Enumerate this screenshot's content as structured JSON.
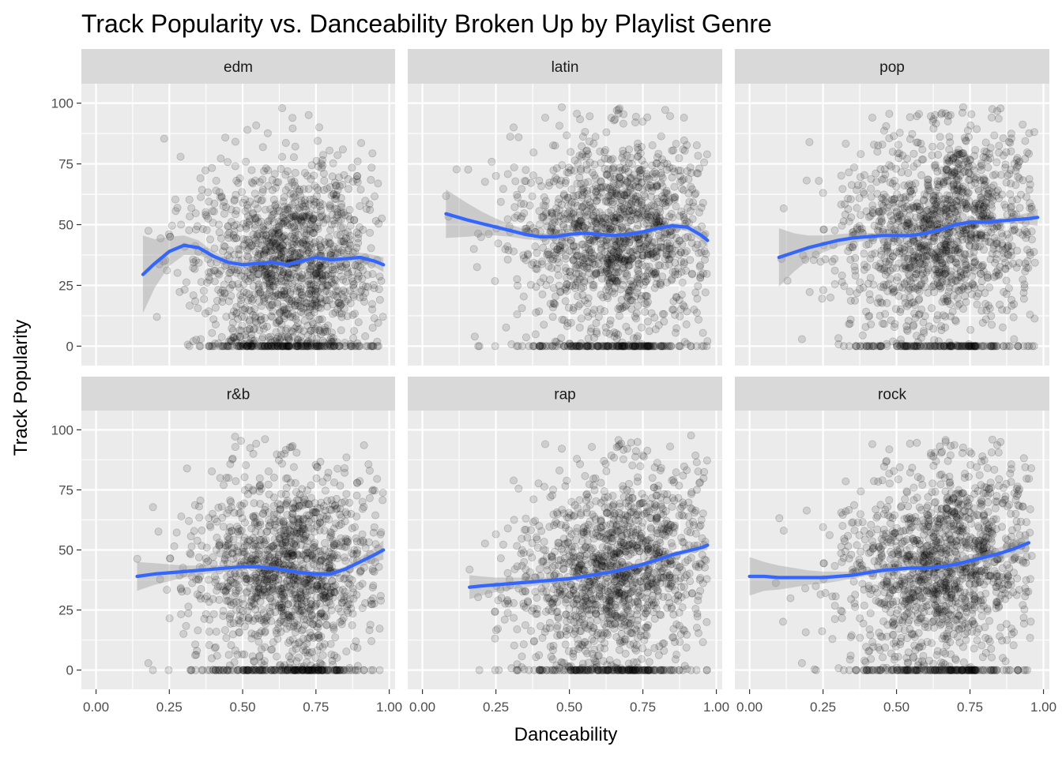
{
  "chart_data": {
    "type": "scatter",
    "title": "Track Popularity vs. Danceability Broken Up by Playlist Genre",
    "xlabel": "Danceability",
    "ylabel": "Track Popularity",
    "xlim": [
      -0.05,
      1.02
    ],
    "ylim": [
      -8,
      108
    ],
    "x_ticks": [
      0,
      0.25,
      0.5,
      0.75,
      1.0
    ],
    "x_tick_labels": [
      "0.00",
      "0.25",
      "0.50",
      "0.75",
      "1.00"
    ],
    "y_ticks": [
      0,
      25,
      50,
      75,
      100
    ],
    "y_tick_labels": [
      "0",
      "25",
      "50",
      "75",
      "100"
    ],
    "grid": true,
    "colors": {
      "panel_background": "#ebebeb",
      "strip_background": "#d9d9d9",
      "grid": "#ffffff",
      "point": "#000000",
      "smooth_line": "#3366ff",
      "confidence_band": "#999999"
    },
    "point_alpha": 0.12,
    "facets": [
      {
        "name": "edm",
        "x_range": [
          0.16,
          0.98
        ],
        "points_sampled": 1500,
        "smooth": {
          "x": [
            0.16,
            0.2,
            0.25,
            0.3,
            0.35,
            0.4,
            0.45,
            0.5,
            0.55,
            0.6,
            0.65,
            0.7,
            0.75,
            0.8,
            0.85,
            0.9,
            0.95,
            0.98
          ],
          "y": [
            29.5,
            34,
            39,
            41.5,
            40.5,
            37,
            34.5,
            33.5,
            34,
            34.5,
            33.5,
            35,
            36.5,
            35.5,
            36,
            36.5,
            35,
            33.5
          ],
          "se": [
            16,
            10,
            6,
            4,
            3,
            2,
            1.5,
            1.2,
            1,
            1,
            1,
            1,
            1,
            1.2,
            1.5,
            2,
            2.5,
            3
          ]
        }
      },
      {
        "name": "latin",
        "x_range": [
          0.08,
          0.97
        ],
        "points_sampled": 1500,
        "smooth": {
          "x": [
            0.08,
            0.15,
            0.2,
            0.25,
            0.3,
            0.35,
            0.4,
            0.45,
            0.5,
            0.55,
            0.6,
            0.65,
            0.7,
            0.75,
            0.8,
            0.85,
            0.9,
            0.95,
            0.97
          ],
          "y": [
            54.5,
            52,
            50.5,
            49,
            47.5,
            46,
            45,
            45,
            46,
            46.5,
            46,
            45.5,
            46,
            47,
            48.5,
            49.5,
            49,
            45.5,
            43.5
          ],
          "se": [
            10,
            7,
            5,
            3.5,
            2.5,
            2,
            1.5,
            1.2,
            1,
            1,
            1,
            1,
            1,
            1,
            1,
            1.2,
            1.5,
            2.5,
            3
          ]
        }
      },
      {
        "name": "pop",
        "x_range": [
          0.1,
          0.98
        ],
        "points_sampled": 1500,
        "smooth": {
          "x": [
            0.1,
            0.15,
            0.2,
            0.25,
            0.3,
            0.35,
            0.4,
            0.45,
            0.5,
            0.55,
            0.6,
            0.65,
            0.7,
            0.75,
            0.8,
            0.85,
            0.9,
            0.95,
            0.98
          ],
          "y": [
            36.5,
            38.5,
            40.5,
            42,
            43.5,
            44.5,
            45,
            45.5,
            45.5,
            45.5,
            46.5,
            48,
            50,
            51,
            51,
            51.5,
            52,
            52.5,
            53
          ],
          "se": [
            12,
            8,
            5,
            3.5,
            2.5,
            2,
            1.5,
            1.2,
            1,
            1,
            1,
            1,
            1,
            1,
            1,
            1.2,
            1.5,
            2.5,
            3.5
          ]
        }
      },
      {
        "name": "r&b",
        "x_range": [
          0.14,
          0.98
        ],
        "points_sampled": 1500,
        "smooth": {
          "x": [
            0.14,
            0.2,
            0.25,
            0.3,
            0.35,
            0.4,
            0.45,
            0.5,
            0.55,
            0.6,
            0.65,
            0.7,
            0.75,
            0.8,
            0.85,
            0.9,
            0.95,
            0.98
          ],
          "y": [
            39,
            40,
            40.5,
            41,
            41.5,
            42,
            42.5,
            43,
            43,
            42.5,
            41.5,
            40.5,
            40,
            40,
            42,
            45,
            48,
            50
          ],
          "se": [
            6,
            4.5,
            3.5,
            2.5,
            2,
            1.5,
            1.2,
            1,
            1,
            1,
            1,
            1,
            1,
            1,
            1.2,
            2,
            3,
            4
          ]
        }
      },
      {
        "name": "rap",
        "x_range": [
          0.16,
          0.97
        ],
        "points_sampled": 1500,
        "smooth": {
          "x": [
            0.16,
            0.2,
            0.25,
            0.3,
            0.35,
            0.4,
            0.45,
            0.5,
            0.55,
            0.6,
            0.65,
            0.7,
            0.75,
            0.8,
            0.85,
            0.9,
            0.95,
            0.97
          ],
          "y": [
            34.5,
            35,
            35.5,
            36,
            36.5,
            37,
            37.5,
            38,
            39,
            40,
            41,
            42.5,
            44,
            46,
            48,
            49.5,
            51,
            52
          ],
          "se": [
            5,
            4,
            3,
            2.5,
            2,
            1.5,
            1.2,
            1,
            1,
            1,
            1,
            1,
            1,
            1,
            1,
            1.2,
            1.5,
            2
          ]
        }
      },
      {
        "name": "rock",
        "x_range": [
          0.0,
          0.96
        ],
        "points_sampled": 1500,
        "smooth": {
          "x": [
            0.0,
            0.05,
            0.1,
            0.15,
            0.2,
            0.25,
            0.3,
            0.35,
            0.4,
            0.45,
            0.5,
            0.55,
            0.6,
            0.65,
            0.7,
            0.75,
            0.8,
            0.85,
            0.9,
            0.95
          ],
          "y": [
            39,
            39,
            38.5,
            38.5,
            38.5,
            38.5,
            39,
            39.5,
            40.5,
            41.5,
            42,
            42.5,
            42.5,
            43,
            44,
            45.5,
            47,
            48.5,
            50.5,
            53
          ],
          "se": [
            8,
            6,
            5,
            4,
            3,
            2.5,
            2,
            1.5,
            1.2,
            1,
            1,
            1,
            1,
            1,
            1.2,
            1.5,
            2,
            2.5,
            3,
            4
          ]
        }
      }
    ]
  }
}
